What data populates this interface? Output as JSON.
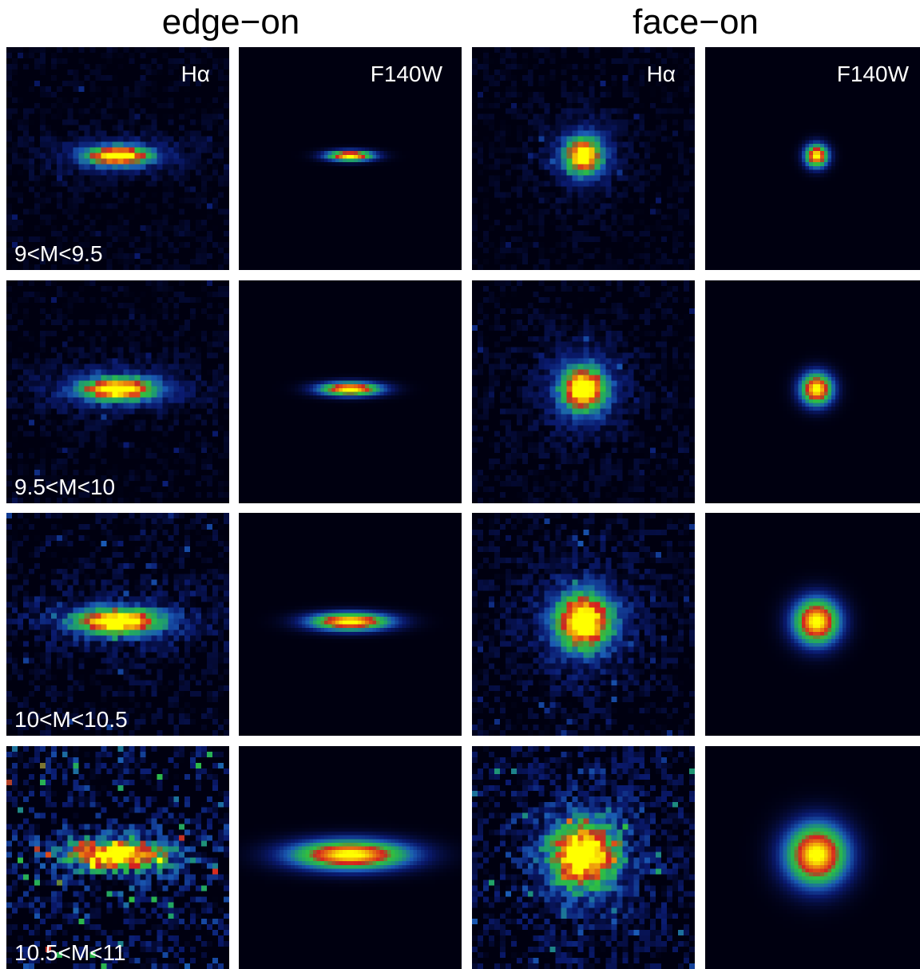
{
  "group_titles": [
    "edge−on",
    "face−on"
  ],
  "band_labels": [
    "Hα",
    "F140W",
    "Hα",
    "F140W"
  ],
  "mass_bins": [
    "9<M<9.5",
    "9.5<M<10",
    "10<M<10.5",
    "10.5<M<11"
  ],
  "colormap": [
    "#000010",
    "#0a1a6e",
    "#1a5ab4",
    "#20a06a",
    "#30c040",
    "#d42020",
    "#e87a10",
    "#ffff00"
  ],
  "panels": [
    {
      "band": "Hα",
      "view": "edge-on",
      "mass": "9<M<9.5",
      "axis_ratio": 0.3,
      "size": 0.55,
      "noise": 0.12
    },
    {
      "band": "F140W",
      "view": "edge-on",
      "mass": "9<M<9.5",
      "axis_ratio": 0.22,
      "size": 0.38,
      "noise": 0.0
    },
    {
      "band": "Hα",
      "view": "face-on",
      "mass": "9<M<9.5",
      "axis_ratio": 1.0,
      "size": 0.5,
      "noise": 0.12
    },
    {
      "band": "F140W",
      "view": "face-on",
      "mass": "9<M<9.5",
      "axis_ratio": 1.0,
      "size": 0.3,
      "noise": 0.0
    },
    {
      "band": "Hα",
      "view": "edge-on",
      "mass": "9.5<M<10",
      "axis_ratio": 0.3,
      "size": 0.65,
      "noise": 0.13
    },
    {
      "band": "F140W",
      "view": "edge-on",
      "mass": "9.5<M<10",
      "axis_ratio": 0.22,
      "size": 0.5,
      "noise": 0.0
    },
    {
      "band": "Hα",
      "view": "face-on",
      "mass": "9.5<M<10",
      "axis_ratio": 1.0,
      "size": 0.62,
      "noise": 0.14
    },
    {
      "band": "F140W",
      "view": "face-on",
      "mass": "9.5<M<10",
      "axis_ratio": 1.0,
      "size": 0.42,
      "noise": 0.0
    },
    {
      "band": "Hα",
      "view": "edge-on",
      "mass": "10<M<10.5",
      "axis_ratio": 0.3,
      "size": 0.75,
      "noise": 0.2
    },
    {
      "band": "F140W",
      "view": "edge-on",
      "mass": "10<M<10.5",
      "axis_ratio": 0.22,
      "size": 0.65,
      "noise": 0.0
    },
    {
      "band": "Hα",
      "view": "face-on",
      "mass": "10<M<10.5",
      "axis_ratio": 1.0,
      "size": 0.78,
      "noise": 0.18
    },
    {
      "band": "F140W",
      "view": "face-on",
      "mass": "10<M<10.5",
      "axis_ratio": 1.0,
      "size": 0.6,
      "noise": 0.0
    },
    {
      "band": "Hα",
      "view": "edge-on",
      "mass": "10.5<M<11",
      "axis_ratio": 0.3,
      "size": 0.85,
      "noise": 0.45
    },
    {
      "band": "F140W",
      "view": "edge-on",
      "mass": "10.5<M<11",
      "axis_ratio": 0.25,
      "size": 0.95,
      "noise": 0.0
    },
    {
      "band": "Hα",
      "view": "face-on",
      "mass": "10.5<M<11",
      "axis_ratio": 1.0,
      "size": 0.95,
      "noise": 0.3
    },
    {
      "band": "F140W",
      "view": "face-on",
      "mass": "10.5<M<11",
      "axis_ratio": 1.0,
      "size": 0.8,
      "noise": 0.0
    }
  ]
}
